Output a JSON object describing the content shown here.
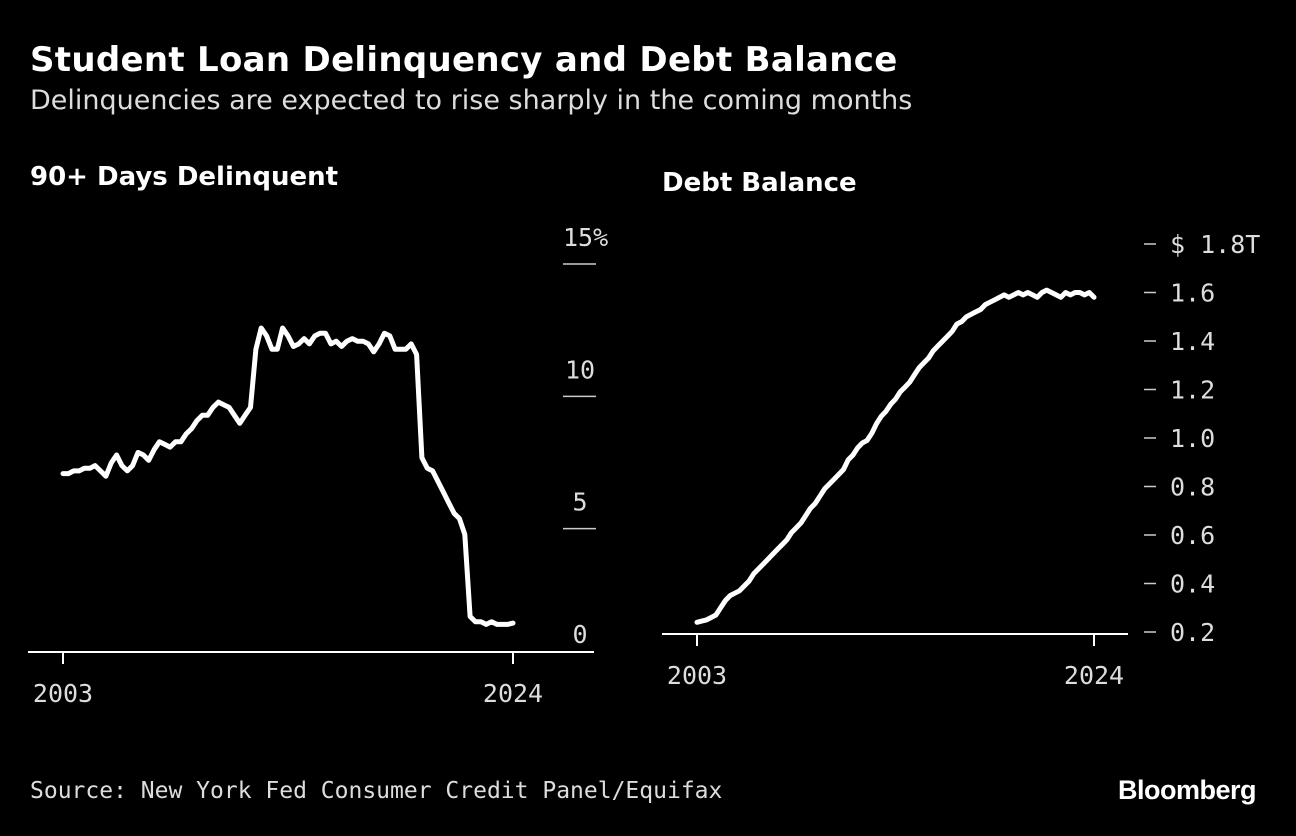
{
  "header": {
    "title": "Student Loan Delinquency and Debt Balance",
    "subtitle": "Delinquencies are expected to rise sharply in the coming months"
  },
  "footer": {
    "source": "Source: New York Fed Consumer Credit Panel/Equifax",
    "logo": "Bloomberg"
  },
  "colors": {
    "background": "#000000",
    "line": "#ffffff",
    "text": "#dddddd"
  },
  "chart_data": [
    {
      "type": "line",
      "title": "90+ Days Delinquent",
      "ylim": [
        0,
        15
      ],
      "xlim": [
        2003,
        2024
      ],
      "x_ticks": [
        "2003",
        "2024"
      ],
      "y_ticks": [
        {
          "value": 0,
          "label": "0"
        },
        {
          "value": 5,
          "label": "5"
        },
        {
          "value": 10,
          "label": "10"
        },
        {
          "value": 15,
          "label": "15%"
        }
      ],
      "series": [
        {
          "x": [
            2003.0,
            2003.25,
            2003.5,
            2003.75,
            2004.0,
            2004.25,
            2004.5,
            2004.75,
            2005.0,
            2005.25,
            2005.5,
            2005.75,
            2006.0,
            2006.25,
            2006.5,
            2006.75,
            2007.0,
            2007.25,
            2007.5,
            2007.75,
            2008.0,
            2008.25,
            2008.5,
            2008.75,
            2009.0,
            2009.25,
            2009.5,
            2009.75,
            2010.0,
            2010.25,
            2010.5,
            2010.75,
            2011.0,
            2011.25,
            2011.5,
            2011.75,
            2012.0,
            2012.25,
            2012.5,
            2012.75,
            2013.0,
            2013.25,
            2013.5,
            2013.75,
            2014.0,
            2014.25,
            2014.5,
            2014.75,
            2015.0,
            2015.25,
            2015.5,
            2015.75,
            2016.0,
            2016.25,
            2016.5,
            2016.75,
            2017.0,
            2017.25,
            2017.5,
            2017.75,
            2018.0,
            2018.25,
            2018.5,
            2018.75,
            2019.0,
            2019.25,
            2019.5,
            2019.75,
            2020.0,
            2020.25,
            2020.5,
            2020.75,
            2021.0,
            2021.25,
            2021.5,
            2021.75,
            2022.0,
            2022.25,
            2022.5,
            2022.75,
            2023.0,
            2023.25,
            2023.5,
            2023.75,
            2024.0
          ],
          "values": [
            6.1,
            6.1,
            6.2,
            6.2,
            6.3,
            6.3,
            6.4,
            6.2,
            6.0,
            6.5,
            6.8,
            6.4,
            6.2,
            6.4,
            6.9,
            6.8,
            6.6,
            7.0,
            7.3,
            7.2,
            7.1,
            7.3,
            7.3,
            7.6,
            7.8,
            8.1,
            8.3,
            8.3,
            8.6,
            8.8,
            8.7,
            8.6,
            8.3,
            8.0,
            8.3,
            8.6,
            10.8,
            11.6,
            11.3,
            10.8,
            10.8,
            11.6,
            11.3,
            10.9,
            11.0,
            11.2,
            11.0,
            11.3,
            11.4,
            11.4,
            11.0,
            11.1,
            10.9,
            11.1,
            11.2,
            11.1,
            11.1,
            11.0,
            10.7,
            11.0,
            11.4,
            11.3,
            10.8,
            10.8,
            10.8,
            11.0,
            10.6,
            6.7,
            6.3,
            6.2,
            5.8,
            5.4,
            5.0,
            4.6,
            4.4,
            3.8,
            0.7,
            0.5,
            0.5,
            0.4,
            0.5,
            0.4,
            0.4,
            0.4,
            0.45
          ]
        }
      ]
    },
    {
      "type": "line",
      "title": "Debt Balance",
      "ylim": [
        0.2,
        1.8
      ],
      "xlim": [
        2003,
        2024
      ],
      "x_ticks": [
        "2003",
        "2024"
      ],
      "y_ticks": [
        {
          "value": 0.2,
          "label": "0.2"
        },
        {
          "value": 0.4,
          "label": "0.4"
        },
        {
          "value": 0.6,
          "label": "0.6"
        },
        {
          "value": 0.8,
          "label": "0.8"
        },
        {
          "value": 1.0,
          "label": "1.0"
        },
        {
          "value": 1.2,
          "label": "1.2"
        },
        {
          "value": 1.4,
          "label": "1.4"
        },
        {
          "value": 1.6,
          "label": "1.6"
        },
        {
          "value": 1.8,
          "label": "$ 1.8T"
        }
      ],
      "series": [
        {
          "x": [
            2003.0,
            2003.25,
            2003.5,
            2003.75,
            2004.0,
            2004.25,
            2004.5,
            2004.75,
            2005.0,
            2005.25,
            2005.5,
            2005.75,
            2006.0,
            2006.25,
            2006.5,
            2006.75,
            2007.0,
            2007.25,
            2007.5,
            2007.75,
            2008.0,
            2008.25,
            2008.5,
            2008.75,
            2009.0,
            2009.25,
            2009.5,
            2009.75,
            2010.0,
            2010.25,
            2010.5,
            2010.75,
            2011.0,
            2011.25,
            2011.5,
            2011.75,
            2012.0,
            2012.25,
            2012.5,
            2012.75,
            2013.0,
            2013.25,
            2013.5,
            2013.75,
            2014.0,
            2014.25,
            2014.5,
            2014.75,
            2015.0,
            2015.25,
            2015.5,
            2015.75,
            2016.0,
            2016.25,
            2016.5,
            2016.75,
            2017.0,
            2017.25,
            2017.5,
            2017.75,
            2018.0,
            2018.25,
            2018.5,
            2018.75,
            2019.0,
            2019.25,
            2019.5,
            2019.75,
            2020.0,
            2020.25,
            2020.5,
            2020.75,
            2021.0,
            2021.25,
            2021.5,
            2021.75,
            2022.0,
            2022.25,
            2022.5,
            2022.75,
            2023.0,
            2023.25,
            2023.5,
            2023.75,
            2024.0
          ],
          "values": [
            0.24,
            0.245,
            0.25,
            0.26,
            0.27,
            0.3,
            0.33,
            0.35,
            0.36,
            0.37,
            0.39,
            0.41,
            0.44,
            0.46,
            0.48,
            0.5,
            0.52,
            0.54,
            0.56,
            0.58,
            0.61,
            0.63,
            0.65,
            0.68,
            0.71,
            0.73,
            0.76,
            0.79,
            0.81,
            0.83,
            0.85,
            0.87,
            0.91,
            0.93,
            0.96,
            0.98,
            0.99,
            1.02,
            1.06,
            1.09,
            1.11,
            1.14,
            1.16,
            1.19,
            1.21,
            1.23,
            1.26,
            1.29,
            1.31,
            1.33,
            1.36,
            1.38,
            1.4,
            1.42,
            1.44,
            1.47,
            1.48,
            1.5,
            1.51,
            1.52,
            1.53,
            1.55,
            1.56,
            1.57,
            1.58,
            1.59,
            1.58,
            1.59,
            1.6,
            1.59,
            1.6,
            1.59,
            1.58,
            1.6,
            1.61,
            1.6,
            1.59,
            1.58,
            1.6,
            1.59,
            1.6,
            1.6,
            1.59,
            1.6,
            1.58
          ]
        }
      ]
    }
  ]
}
